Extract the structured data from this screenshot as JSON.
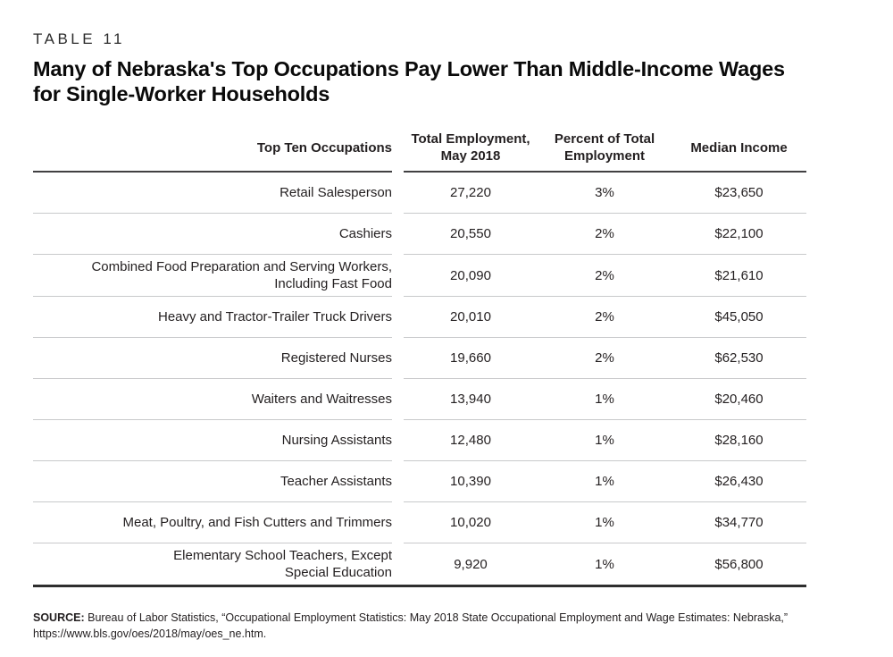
{
  "page": {
    "kicker": "TABLE 11",
    "title": "Many of Nebraska's Top Occupations Pay Lower Than Middle-Income Wages\nfor Single-Worker Households"
  },
  "table": {
    "columns": [
      {
        "label": "Top Ten Occupations"
      },
      {
        "label": "Total Employment,\nMay 2018"
      },
      {
        "label": "Percent of Total\nEmployment"
      },
      {
        "label": "Median Income"
      }
    ],
    "rows": [
      {
        "occupation": "Retail Salesperson",
        "total_employment": "27,220",
        "percent_of_total": "3%",
        "median_income": "$23,650"
      },
      {
        "occupation": "Cashiers",
        "total_employment": "20,550",
        "percent_of_total": "2%",
        "median_income": "$22,100"
      },
      {
        "occupation": "Combined Food Preparation and Serving Workers,\nIncluding Fast Food",
        "total_employment": "20,090",
        "percent_of_total": "2%",
        "median_income": "$21,610"
      },
      {
        "occupation": "Heavy and Tractor-Trailer Truck Drivers",
        "total_employment": "20,010",
        "percent_of_total": "2%",
        "median_income": "$45,050"
      },
      {
        "occupation": "Registered Nurses",
        "total_employment": "19,660",
        "percent_of_total": "2%",
        "median_income": "$62,530"
      },
      {
        "occupation": "Waiters and Waitresses",
        "total_employment": "13,940",
        "percent_of_total": "1%",
        "median_income": "$20,460"
      },
      {
        "occupation": "Nursing Assistants",
        "total_employment": "12,480",
        "percent_of_total": "1%",
        "median_income": "$28,160"
      },
      {
        "occupation": "Teacher Assistants",
        "total_employment": "10,390",
        "percent_of_total": "1%",
        "median_income": "$26,430"
      },
      {
        "occupation": "Meat, Poultry, and Fish Cutters and Trimmers",
        "total_employment": "10,020",
        "percent_of_total": "1%",
        "median_income": "$34,770"
      },
      {
        "occupation": "Elementary School Teachers, Except\nSpecial Education",
        "total_employment": "9,920",
        "percent_of_total": "1%",
        "median_income": "$56,800"
      }
    ]
  },
  "source": {
    "label": "SOURCE:",
    "text": "Bureau of Labor Statistics, “Occupational Employment Statistics: May 2018 State Occupational Employment and Wage Estimates: Nebraska,” https://www.bls.gov/oes/2018/may/oes_ne.htm."
  }
}
